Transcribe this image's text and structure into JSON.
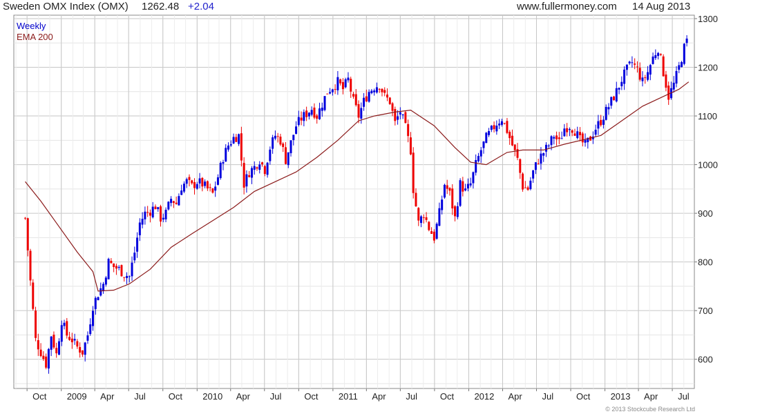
{
  "header": {
    "index_title": "Sweden OMX Index (OMX)",
    "last_value": "1262.48",
    "change": "+2.04",
    "source": "www.fullermoney.com",
    "date": "14 Aug 2013"
  },
  "copyright": "© 2013 Stockcube Research Ltd",
  "colors": {
    "up": "#0000dd",
    "down": "#ee0000",
    "ema": "#8b1a1a",
    "grid": "#cfcfcf",
    "label_series": "#0000cc",
    "label_ema": "#8b1a1a"
  },
  "chart_data": {
    "type": "candlestick",
    "title": "Sweden OMX Index (OMX)",
    "frequency_label": "Weekly",
    "ylim": [
      540,
      1300
    ],
    "y_ticks": [
      600,
      700,
      800,
      900,
      1000,
      1100,
      1200,
      1300
    ],
    "x_tick_labels": [
      "Oct",
      "2009",
      "Apr",
      "Jul",
      "Oct",
      "2010",
      "Apr",
      "Jul",
      "Oct",
      "2011",
      "Apr",
      "Jul",
      "Oct",
      "2012",
      "Apr",
      "Jul",
      "Oct",
      "2013",
      "Apr",
      "Jul"
    ],
    "grid": true,
    "series": [
      {
        "name": "Weekly",
        "kind": "ohlc_weekly",
        "close_path": [
          [
            "2008-09-26",
            890
          ],
          [
            "2008-10-10",
            760
          ],
          [
            "2008-10-24",
            640
          ],
          [
            "2008-11-07",
            615
          ],
          [
            "2008-11-21",
            590
          ],
          [
            "2008-12-05",
            650
          ],
          [
            "2008-12-19",
            610
          ],
          [
            "2009-01-02",
            680
          ],
          [
            "2009-01-16",
            650
          ],
          [
            "2009-01-30",
            640
          ],
          [
            "2009-02-13",
            625
          ],
          [
            "2009-02-27",
            615
          ],
          [
            "2009-03-13",
            650
          ],
          [
            "2009-03-27",
            710
          ],
          [
            "2009-04-10",
            735
          ],
          [
            "2009-04-24",
            755
          ],
          [
            "2009-05-08",
            800
          ],
          [
            "2009-05-22",
            790
          ],
          [
            "2009-06-05",
            785
          ],
          [
            "2009-06-19",
            775
          ],
          [
            "2009-07-03",
            770
          ],
          [
            "2009-07-17",
            820
          ],
          [
            "2009-07-31",
            880
          ],
          [
            "2009-08-14",
            900
          ],
          [
            "2009-08-28",
            905
          ],
          [
            "2009-09-11",
            915
          ],
          [
            "2009-09-25",
            890
          ],
          [
            "2009-10-09",
            900
          ],
          [
            "2009-10-23",
            930
          ],
          [
            "2009-11-06",
            920
          ],
          [
            "2009-11-20",
            955
          ],
          [
            "2009-12-04",
            965
          ],
          [
            "2009-12-18",
            955
          ],
          [
            "2010-01-01",
            965
          ],
          [
            "2010-01-15",
            960
          ],
          [
            "2010-01-29",
            950
          ],
          [
            "2010-02-12",
            940
          ],
          [
            "2010-02-26",
            975
          ],
          [
            "2010-03-12",
            1015
          ],
          [
            "2010-03-26",
            1040
          ],
          [
            "2010-04-09",
            1055
          ],
          [
            "2010-04-23",
            1060
          ],
          [
            "2010-05-07",
            960
          ],
          [
            "2010-05-21",
            985
          ],
          [
            "2010-06-04",
            995
          ],
          [
            "2010-06-18",
            1010
          ],
          [
            "2010-07-02",
            990
          ],
          [
            "2010-07-16",
            1035
          ],
          [
            "2010-07-30",
            1060
          ],
          [
            "2010-08-13",
            1050
          ],
          [
            "2010-08-27",
            1010
          ],
          [
            "2010-09-10",
            1045
          ],
          [
            "2010-09-24",
            1080
          ],
          [
            "2010-10-08",
            1095
          ],
          [
            "2010-10-22",
            1105
          ],
          [
            "2010-11-05",
            1115
          ],
          [
            "2010-11-19",
            1100
          ],
          [
            "2010-12-03",
            1125
          ],
          [
            "2010-12-17",
            1150
          ],
          [
            "2010-12-31",
            1160
          ],
          [
            "2011-01-14",
            1170
          ],
          [
            "2011-01-28",
            1155
          ],
          [
            "2011-02-11",
            1175
          ],
          [
            "2011-02-25",
            1130
          ],
          [
            "2011-03-11",
            1100
          ],
          [
            "2011-03-25",
            1130
          ],
          [
            "2011-04-08",
            1150
          ],
          [
            "2011-04-22",
            1160
          ],
          [
            "2011-05-06",
            1165
          ],
          [
            "2011-05-20",
            1140
          ],
          [
            "2011-06-03",
            1130
          ],
          [
            "2011-06-17",
            1085
          ],
          [
            "2011-07-01",
            1110
          ],
          [
            "2011-07-15",
            1075
          ],
          [
            "2011-07-29",
            1030
          ],
          [
            "2011-08-05",
            950
          ],
          [
            "2011-08-19",
            880
          ],
          [
            "2011-09-02",
            900
          ],
          [
            "2011-09-16",
            870
          ],
          [
            "2011-09-30",
            850
          ],
          [
            "2011-10-14",
            900
          ],
          [
            "2011-10-28",
            960
          ],
          [
            "2011-11-11",
            940
          ],
          [
            "2011-11-25",
            890
          ],
          [
            "2011-12-09",
            960
          ],
          [
            "2011-12-23",
            945
          ],
          [
            "2012-01-06",
            960
          ],
          [
            "2012-01-20",
            1000
          ],
          [
            "2012-02-03",
            1030
          ],
          [
            "2012-02-17",
            1055
          ],
          [
            "2012-03-02",
            1070
          ],
          [
            "2012-03-16",
            1085
          ],
          [
            "2012-03-30",
            1095
          ],
          [
            "2012-04-13",
            1070
          ],
          [
            "2012-04-27",
            1040
          ],
          [
            "2012-05-11",
            1010
          ],
          [
            "2012-05-25",
            955
          ],
          [
            "2012-06-08",
            950
          ],
          [
            "2012-06-22",
            985
          ],
          [
            "2012-07-06",
            1010
          ],
          [
            "2012-07-20",
            1025
          ],
          [
            "2012-08-03",
            1040
          ],
          [
            "2012-08-17",
            1060
          ],
          [
            "2012-08-31",
            1045
          ],
          [
            "2012-09-14",
            1075
          ],
          [
            "2012-09-28",
            1080
          ],
          [
            "2012-10-12",
            1070
          ],
          [
            "2012-10-26",
            1050
          ],
          [
            "2012-11-09",
            1040
          ],
          [
            "2012-11-23",
            1055
          ],
          [
            "2012-12-07",
            1075
          ],
          [
            "2012-12-21",
            1090
          ],
          [
            "2013-01-04",
            1110
          ],
          [
            "2013-01-18",
            1130
          ],
          [
            "2013-02-01",
            1150
          ],
          [
            "2013-02-15",
            1175
          ],
          [
            "2013-03-01",
            1195
          ],
          [
            "2013-03-15",
            1210
          ],
          [
            "2013-03-29",
            1195
          ],
          [
            "2013-04-12",
            1170
          ],
          [
            "2013-04-26",
            1190
          ],
          [
            "2013-05-10",
            1220
          ],
          [
            "2013-05-24",
            1240
          ],
          [
            "2013-06-07",
            1190
          ],
          [
            "2013-06-21",
            1140
          ],
          [
            "2013-07-05",
            1165
          ],
          [
            "2013-07-19",
            1200
          ],
          [
            "2013-08-02",
            1240
          ],
          [
            "2013-08-14",
            1262.48
          ]
        ]
      },
      {
        "name": "EMA 200",
        "kind": "line",
        "points": [
          [
            "2008-09-26",
            965
          ],
          [
            "2008-11-07",
            925
          ],
          [
            "2008-12-19",
            880
          ],
          [
            "2009-02-13",
            820
          ],
          [
            "2009-03-27",
            780
          ],
          [
            "2009-04-10",
            740
          ],
          [
            "2009-05-22",
            742
          ],
          [
            "2009-07-03",
            755
          ],
          [
            "2009-08-28",
            785
          ],
          [
            "2009-10-23",
            830
          ],
          [
            "2009-12-18",
            858
          ],
          [
            "2010-02-12",
            885
          ],
          [
            "2010-04-09",
            912
          ],
          [
            "2010-06-04",
            945
          ],
          [
            "2010-07-30",
            965
          ],
          [
            "2010-09-24",
            985
          ],
          [
            "2010-11-19",
            1015
          ],
          [
            "2011-01-14",
            1050
          ],
          [
            "2011-03-11",
            1090
          ],
          [
            "2011-04-22",
            1100
          ],
          [
            "2011-06-17",
            1108
          ],
          [
            "2011-07-29",
            1112
          ],
          [
            "2011-09-30",
            1080
          ],
          [
            "2011-11-25",
            1035
          ],
          [
            "2012-01-06",
            1005
          ],
          [
            "2012-02-17",
            1000
          ],
          [
            "2012-04-13",
            1025
          ],
          [
            "2012-05-25",
            1030
          ],
          [
            "2012-07-20",
            1030
          ],
          [
            "2012-09-14",
            1042
          ],
          [
            "2012-11-09",
            1052
          ],
          [
            "2012-12-21",
            1060
          ],
          [
            "2013-02-15",
            1090
          ],
          [
            "2013-04-12",
            1120
          ],
          [
            "2013-06-07",
            1140
          ],
          [
            "2013-07-19",
            1155
          ],
          [
            "2013-08-14",
            1170
          ]
        ]
      }
    ]
  }
}
